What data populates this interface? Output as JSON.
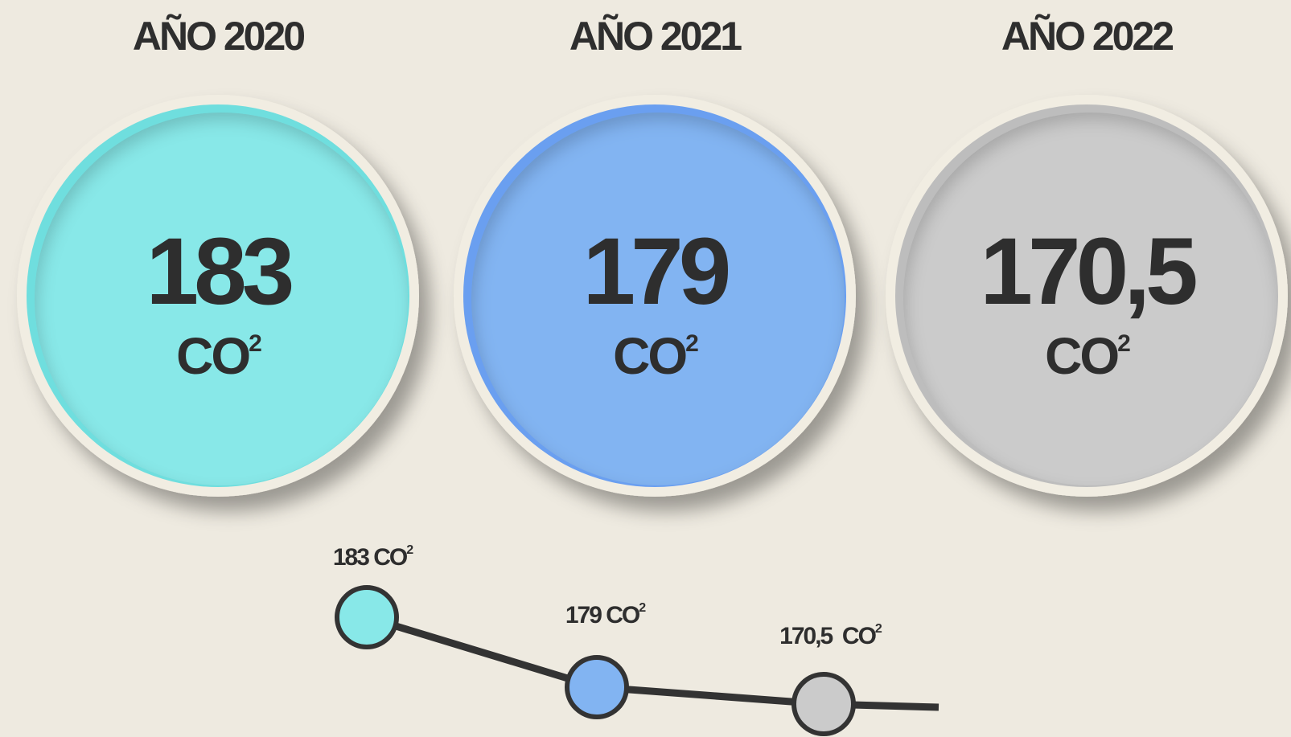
{
  "cards": [
    {
      "title": "AÑO 2020",
      "value": "183",
      "unit": "CO",
      "sup": "2",
      "color": "#88e8e8",
      "rim": "#6fdede"
    },
    {
      "title": "AÑO 2021",
      "value": "179",
      "unit": "CO",
      "sup": "2",
      "color": "#82b4f2",
      "rim": "#6a9ff0"
    },
    {
      "title": "AÑO 2022",
      "value": "170,5",
      "unit": "CO",
      "sup": "2",
      "color": "#cbcbcb",
      "rim": "#bdbdbd"
    }
  ],
  "trend": [
    {
      "label": "183 CO",
      "sup": "2",
      "color": "#88e8e8"
    },
    {
      "label": "179 CO",
      "sup": "2",
      "color": "#82b4f2"
    },
    {
      "label": "170,5  CO",
      "sup": "2",
      "color": "#cbcbcb"
    }
  ]
}
